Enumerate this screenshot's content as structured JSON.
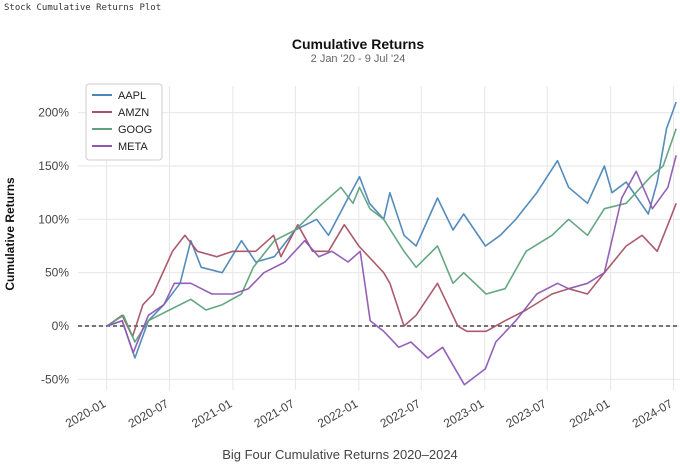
{
  "window": {
    "title": "Stock Cumulative Returns Plot"
  },
  "chart_data": {
    "type": "line",
    "title": "Cumulative Returns",
    "subtitle": "2 Jan '20 -  9 Jul '24",
    "caption": "Big Four Cumulative Returns 2020–2024",
    "xlabel": "",
    "ylabel": "Cumulative Returns",
    "xlim": [
      "2019-10-10",
      "2024-07-20"
    ],
    "ylim": [
      -60,
      225
    ],
    "y_ticks": [
      -50,
      0,
      50,
      100,
      150,
      200
    ],
    "y_tick_labels": [
      "-50%",
      "0%",
      "50%",
      "100%",
      "150%",
      "200%"
    ],
    "x_ticks": [
      "2020-01-01",
      "2020-07-01",
      "2021-01-01",
      "2021-07-01",
      "2022-01-01",
      "2022-07-01",
      "2023-01-01",
      "2023-07-01",
      "2024-01-01",
      "2024-07-01"
    ],
    "x_tick_labels": [
      "2020-01",
      "2020-07",
      "2021-01",
      "2021-07",
      "2022-01",
      "2022-07",
      "2023-01",
      "2023-07",
      "2024-01",
      "2024-07"
    ],
    "zero_line": true,
    "grid": true,
    "legend_position": "top-left",
    "series": [
      {
        "name": "AAPL",
        "color": "#4c86b8",
        "x": [
          "2020-01-02",
          "2020-02-15",
          "2020-03-23",
          "2020-05-01",
          "2020-06-15",
          "2020-08-01",
          "2020-09-01",
          "2020-10-01",
          "2020-12-01",
          "2021-01-26",
          "2021-03-08",
          "2021-05-01",
          "2021-07-01",
          "2021-09-01",
          "2021-10-05",
          "2021-12-01",
          "2022-01-03",
          "2022-02-01",
          "2022-03-14",
          "2022-04-01",
          "2022-05-12",
          "2022-06-16",
          "2022-08-17",
          "2022-10-01",
          "2022-11-01",
          "2023-01-03",
          "2023-02-15",
          "2023-04-01",
          "2023-06-01",
          "2023-07-31",
          "2023-09-01",
          "2023-10-26",
          "2023-12-14",
          "2024-01-05",
          "2024-02-15",
          "2024-04-19",
          "2024-05-15",
          "2024-06-11",
          "2024-07-09"
        ],
        "values": [
          0,
          5,
          -30,
          5,
          20,
          40,
          80,
          55,
          50,
          80,
          60,
          65,
          90,
          100,
          85,
          120,
          140,
          115,
          100,
          125,
          85,
          75,
          120,
          90,
          105,
          75,
          85,
          100,
          125,
          155,
          130,
          115,
          150,
          125,
          135,
          105,
          135,
          185,
          210
        ]
      },
      {
        "name": "AMZN",
        "color": "#a85264",
        "x": [
          "2020-01-02",
          "2020-02-15",
          "2020-03-16",
          "2020-04-15",
          "2020-05-15",
          "2020-07-10",
          "2020-08-15",
          "2020-09-20",
          "2020-11-15",
          "2021-01-01",
          "2021-03-08",
          "2021-04-29",
          "2021-05-20",
          "2021-07-08",
          "2021-08-20",
          "2021-10-05",
          "2021-11-20",
          "2022-01-01",
          "2022-03-14",
          "2022-04-01",
          "2022-05-12",
          "2022-06-16",
          "2022-08-17",
          "2022-10-15",
          "2022-11-10",
          "2023-01-05",
          "2023-03-01",
          "2023-05-01",
          "2023-07-15",
          "2023-09-01",
          "2023-10-26",
          "2023-12-14",
          "2024-02-15",
          "2024-04-01",
          "2024-05-15",
          "2024-06-15",
          "2024-07-09"
        ],
        "values": [
          0,
          10,
          -10,
          20,
          30,
          70,
          85,
          70,
          65,
          70,
          70,
          85,
          65,
          95,
          70,
          70,
          95,
          75,
          50,
          40,
          0,
          10,
          40,
          0,
          -5,
          -5,
          5,
          15,
          30,
          35,
          30,
          50,
          75,
          85,
          70,
          95,
          115
        ]
      },
      {
        "name": "GOOG",
        "color": "#5ea27c",
        "x": [
          "2020-01-02",
          "2020-02-19",
          "2020-03-23",
          "2020-05-01",
          "2020-07-01",
          "2020-09-01",
          "2020-10-15",
          "2020-12-01",
          "2021-01-26",
          "2021-03-01",
          "2021-05-01",
          "2021-07-01",
          "2021-09-01",
          "2021-11-10",
          "2021-12-15",
          "2022-01-03",
          "2022-02-02",
          "2022-03-14",
          "2022-05-12",
          "2022-06-16",
          "2022-08-17",
          "2022-10-01",
          "2022-11-01",
          "2023-01-05",
          "2023-03-01",
          "2023-05-01",
          "2023-07-15",
          "2023-09-01",
          "2023-10-26",
          "2023-12-14",
          "2024-02-15",
          "2024-04-26",
          "2024-06-01",
          "2024-07-09"
        ],
        "values": [
          0,
          10,
          -15,
          5,
          15,
          25,
          15,
          20,
          30,
          55,
          80,
          90,
          110,
          130,
          115,
          130,
          110,
          100,
          70,
          55,
          75,
          40,
          50,
          30,
          35,
          70,
          85,
          100,
          85,
          110,
          115,
          140,
          150,
          185
        ]
      },
      {
        "name": "META",
        "color": "#8e59b3",
        "x": [
          "2020-01-02",
          "2020-02-15",
          "2020-03-18",
          "2020-05-01",
          "2020-06-15",
          "2020-07-15",
          "2020-09-01",
          "2020-11-01",
          "2021-01-01",
          "2021-02-15",
          "2021-04-01",
          "2021-06-01",
          "2021-07-28",
          "2021-09-07",
          "2021-10-15",
          "2021-12-01",
          "2022-01-05",
          "2022-02-03",
          "2022-03-14",
          "2022-04-27",
          "2022-06-01",
          "2022-07-20",
          "2022-09-01",
          "2022-11-03",
          "2023-01-03",
          "2023-02-02",
          "2023-04-01",
          "2023-06-01",
          "2023-07-31",
          "2023-09-01",
          "2023-10-26",
          "2023-12-14",
          "2024-02-02",
          "2024-03-15",
          "2024-05-01",
          "2024-06-15",
          "2024-07-09"
        ],
        "values": [
          0,
          5,
          -25,
          10,
          20,
          40,
          40,
          30,
          30,
          35,
          50,
          60,
          80,
          65,
          70,
          60,
          70,
          5,
          -5,
          -20,
          -15,
          -30,
          -20,
          -55,
          -40,
          -15,
          5,
          30,
          40,
          35,
          40,
          50,
          120,
          145,
          110,
          130,
          160
        ]
      }
    ]
  }
}
